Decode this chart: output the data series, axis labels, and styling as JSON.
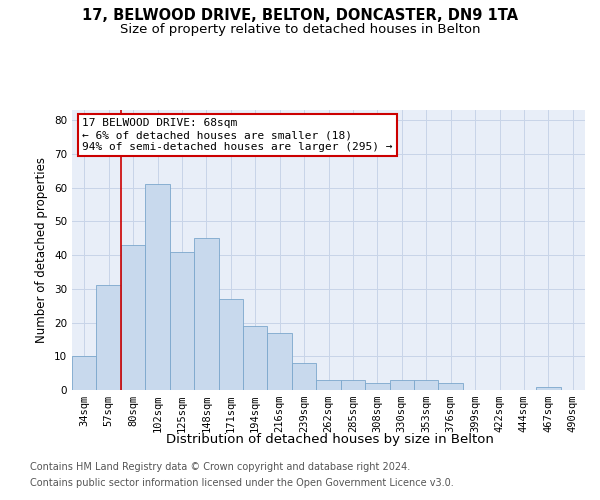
{
  "title_line1": "17, BELWOOD DRIVE, BELTON, DONCASTER, DN9 1TA",
  "title_line2": "Size of property relative to detached houses in Belton",
  "xlabel": "Distribution of detached houses by size in Belton",
  "ylabel": "Number of detached properties",
  "categories": [
    "34sqm",
    "57sqm",
    "80sqm",
    "102sqm",
    "125sqm",
    "148sqm",
    "171sqm",
    "194sqm",
    "216sqm",
    "239sqm",
    "262sqm",
    "285sqm",
    "308sqm",
    "330sqm",
    "353sqm",
    "376sqm",
    "399sqm",
    "422sqm",
    "444sqm",
    "467sqm",
    "490sqm"
  ],
  "values": [
    10,
    31,
    43,
    61,
    41,
    45,
    27,
    19,
    17,
    8,
    3,
    3,
    2,
    3,
    3,
    2,
    0,
    0,
    0,
    1,
    0
  ],
  "bar_color": "#c8d9ed",
  "bar_edge_color": "#7ba7cc",
  "annotation_text": "17 BELWOOD DRIVE: 68sqm\n← 6% of detached houses are smaller (18)\n94% of semi-detached houses are larger (295) →",
  "vline_color": "#cc0000",
  "ylim": [
    0,
    83
  ],
  "yticks": [
    0,
    10,
    20,
    30,
    40,
    50,
    60,
    70,
    80
  ],
  "grid_color": "#c8d4e8",
  "plot_bg_color": "#e8eef8",
  "footer_line1": "Contains HM Land Registry data © Crown copyright and database right 2024.",
  "footer_line2": "Contains public sector information licensed under the Open Government Licence v3.0.",
  "annotation_box_facecolor": "#ffffff",
  "annotation_border_color": "#cc0000",
  "title_fontsize": 10.5,
  "subtitle_fontsize": 9.5,
  "tick_fontsize": 7.5,
  "ylabel_fontsize": 8.5,
  "xlabel_fontsize": 9.5,
  "footer_fontsize": 7
}
